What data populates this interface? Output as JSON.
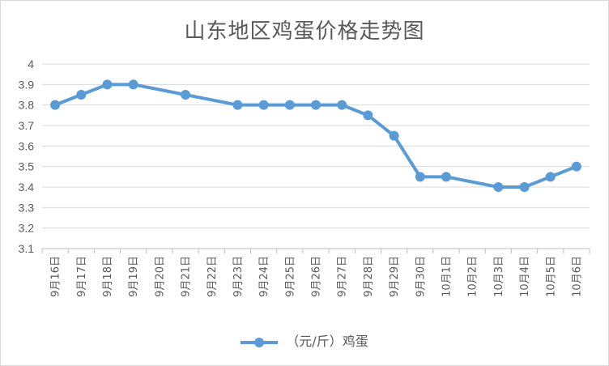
{
  "chart_data": {
    "type": "line",
    "title": "山东地区鸡蛋价格走势图",
    "categories": [
      "9月16日",
      "9月17日",
      "9月18日",
      "9月19日",
      "9月20日",
      "9月21日",
      "9月22日",
      "9月23日",
      "9月24日",
      "9月25日",
      "9月26日",
      "9月27日",
      "9月28日",
      "9月29日",
      "9月30日",
      "10月1日",
      "10月2日",
      "10月3日",
      "10月4日",
      "10月5日",
      "10月6日"
    ],
    "series": [
      {
        "name": "（元/斤）鸡蛋",
        "color": "#5b9bd5",
        "points": [
          {
            "category": "9月16日",
            "value": 3.8
          },
          {
            "category": "9月17日",
            "value": 3.85
          },
          {
            "category": "9月18日",
            "value": 3.9
          },
          {
            "category": "9月19日",
            "value": 3.9
          },
          {
            "category": "9月21日",
            "value": 3.85
          },
          {
            "category": "9月23日",
            "value": 3.8
          },
          {
            "category": "9月24日",
            "value": 3.8
          },
          {
            "category": "9月25日",
            "value": 3.8
          },
          {
            "category": "9月26日",
            "value": 3.8
          },
          {
            "category": "9月27日",
            "value": 3.8
          },
          {
            "category": "9月28日",
            "value": 3.75
          },
          {
            "category": "9月29日",
            "value": 3.65
          },
          {
            "category": "9月30日",
            "value": 3.45
          },
          {
            "category": "10月1日",
            "value": 3.45
          },
          {
            "category": "10月3日",
            "value": 3.4
          },
          {
            "category": "10月4日",
            "value": 3.4
          },
          {
            "category": "10月5日",
            "value": 3.45
          },
          {
            "category": "10月6日",
            "value": 3.5
          }
        ]
      }
    ],
    "ylim": [
      3.1,
      4
    ],
    "yticks": [
      3.1,
      3.2,
      3.3,
      3.4,
      3.5,
      3.6,
      3.7,
      3.8,
      3.9,
      4
    ],
    "grid": true,
    "legend_position": "bottom"
  }
}
